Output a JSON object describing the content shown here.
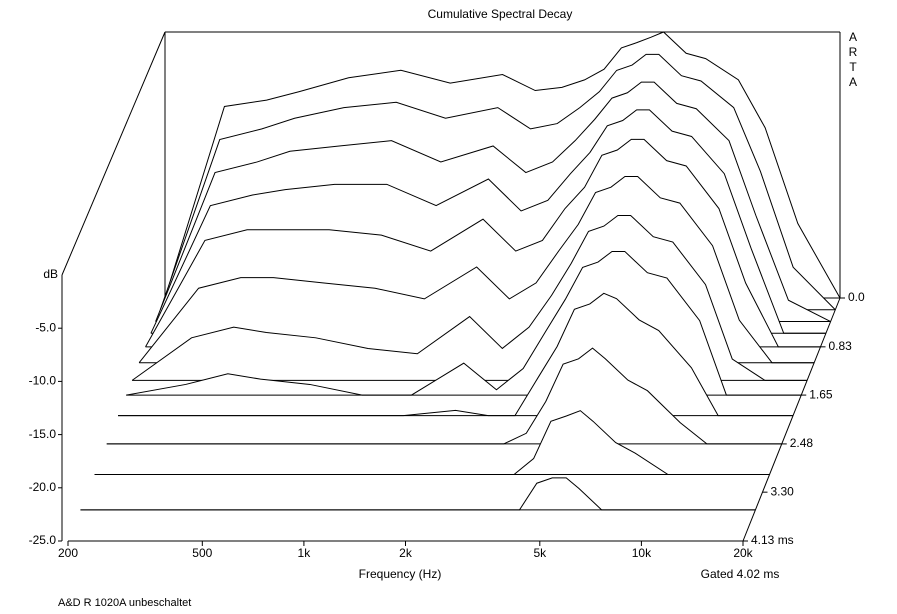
{
  "chart_data": {
    "type": "waterfall",
    "title": "Cumulative Spectral Decay",
    "x_label": "Frequency (Hz)",
    "y_label": "dB",
    "note": "Gated 4.02 ms",
    "footer": "A&D R 1020A unbeschaltet",
    "watermark": "ARTA",
    "log_x": true,
    "color": "#000000",
    "xlim": [
      200,
      20000
    ],
    "xticks": [
      200,
      500,
      {
        "value": 1000,
        "label": "1k"
      },
      {
        "value": 2000,
        "label": "2k"
      },
      {
        "value": 5000,
        "label": "5k"
      },
      {
        "value": 10000,
        "label": "10k"
      },
      {
        "value": 20000,
        "label": "20k"
      }
    ],
    "ylim": [
      -25,
      0
    ],
    "yticks": [
      {
        "value": -5,
        "label": "-5.0"
      },
      {
        "value": -10,
        "label": "-10.0"
      },
      {
        "value": -15,
        "label": "-15.0"
      },
      {
        "value": -20,
        "label": "-20.0"
      },
      {
        "value": -25,
        "label": "-25.0"
      }
    ],
    "tlim": [
      0,
      4.13
    ],
    "tticks": [
      {
        "value": 0,
        "label": "0.0"
      },
      0.83,
      1.65,
      2.48,
      {
        "value": 3.3,
        "label": "3.30"
      },
      {
        "value": 4.13,
        "label": "4.13 ms"
      }
    ],
    "x": [
      200,
      300,
      400,
      500,
      700,
      1000,
      1400,
      2000,
      2500,
      3000,
      3500,
      4000,
      4500,
      5000,
      5500,
      6000,
      7000,
      8000,
      10000,
      12000,
      15000,
      20000
    ],
    "slices": [
      {
        "time": 0,
        "values": [
          -25,
          -7,
          -6.4,
          -5.6,
          -4.3,
          -3.6,
          -4.8,
          -4.0,
          -5.5,
          -5.2,
          -4.5,
          -3.5,
          -1.5,
          -1.0,
          -0.5,
          0,
          -2,
          -2.5,
          -4.5,
          -9,
          -18,
          -25
        ]
      },
      {
        "time": 0.2,
        "values": [
          -25,
          -9,
          -8,
          -7,
          -6,
          -5.5,
          -7,
          -6,
          -8,
          -7.5,
          -6,
          -4.5,
          -2.5,
          -2,
          -1,
          -1,
          -3,
          -3.5,
          -6,
          -12,
          -21,
          -25
        ]
      },
      {
        "time": 0.4,
        "values": [
          -25,
          -11,
          -10,
          -9,
          -8.5,
          -8,
          -10,
          -8.5,
          -11,
          -10,
          -8,
          -6,
          -4,
          -3.5,
          -2.5,
          -2.5,
          -4.5,
          -5,
          -8,
          -15,
          -23,
          -25
        ]
      },
      {
        "time": 0.6,
        "values": [
          -25,
          -13,
          -12,
          -11.5,
          -11,
          -11,
          -13,
          -10.5,
          -13.5,
          -12.5,
          -10,
          -8,
          -5.5,
          -5,
          -4,
          -4,
          -6,
          -6.5,
          -10,
          -17,
          -25,
          -25
        ]
      },
      {
        "time": 0.83,
        "values": [
          -25,
          -15,
          -14,
          -14,
          -14,
          -14.5,
          -16,
          -13,
          -16,
          -15,
          -12,
          -10,
          -7,
          -6.5,
          -5.5,
          -5.5,
          -7.5,
          -8,
          -12,
          -19,
          -25,
          -25
        ]
      },
      {
        "time": 1.1,
        "values": [
          -25,
          -18,
          -17,
          -17,
          -17.5,
          -18,
          -19,
          -16,
          -19,
          -17.5,
          -14.5,
          -12,
          -9,
          -8.5,
          -7.5,
          -7.5,
          -9.5,
          -10,
          -14,
          -21,
          -25,
          -25
        ]
      },
      {
        "time": 1.4,
        "values": [
          -25,
          -21,
          -20,
          -20.5,
          -21,
          -22,
          -22.5,
          -19,
          -22,
          -20,
          -17,
          -14,
          -11,
          -10.5,
          -9.5,
          -9.5,
          -11.5,
          -12,
          -16,
          -23,
          -25,
          -25
        ]
      },
      {
        "time": 1.65,
        "values": [
          -25,
          -24,
          -23,
          -23.5,
          -24,
          -25,
          -25,
          -22,
          -24.5,
          -22.5,
          -19,
          -16,
          -13,
          -12.5,
          -11.5,
          -11.5,
          -13.5,
          -14,
          -18,
          -25,
          -25,
          -25
        ]
      },
      {
        "time": 2.0,
        "values": [
          -25,
          -25,
          -25,
          -25,
          -25,
          -25,
          -25,
          -24.5,
          -25,
          -25,
          -21.5,
          -18.5,
          -15,
          -14.5,
          -13.5,
          -14,
          -16,
          -17,
          -20.5,
          -25,
          -25,
          -25
        ]
      },
      {
        "time": 2.48,
        "values": [
          -25,
          -25,
          -25,
          -25,
          -25,
          -25,
          -25,
          -25,
          -25,
          -25,
          -24,
          -21,
          -17.5,
          -17,
          -16,
          -17,
          -19,
          -20,
          -23,
          -25,
          -25,
          -25
        ]
      },
      {
        "time": 3.0,
        "values": [
          -25,
          -25,
          -25,
          -25,
          -25,
          -25,
          -25,
          -25,
          -25,
          -25,
          -25,
          -23.5,
          -20,
          -19.5,
          -19,
          -20,
          -22,
          -23,
          -25,
          -25,
          -25,
          -25
        ]
      },
      {
        "time": 3.6,
        "values": [
          -25,
          -25,
          -25,
          -25,
          -25,
          -25,
          -25,
          -25,
          -25,
          -25,
          -25,
          -25,
          -22.5,
          -22,
          -22,
          -23,
          -25,
          -25,
          -25,
          -25,
          -25,
          -25
        ]
      },
      {
        "time": 4.13,
        "values": [
          -25,
          -25,
          -25,
          -25,
          -25,
          -25,
          -25,
          -25,
          -25,
          -25,
          -25,
          -25,
          -25,
          -25,
          -25,
          -25,
          -25,
          -25,
          -25,
          -25,
          -25,
          -25
        ]
      }
    ]
  }
}
